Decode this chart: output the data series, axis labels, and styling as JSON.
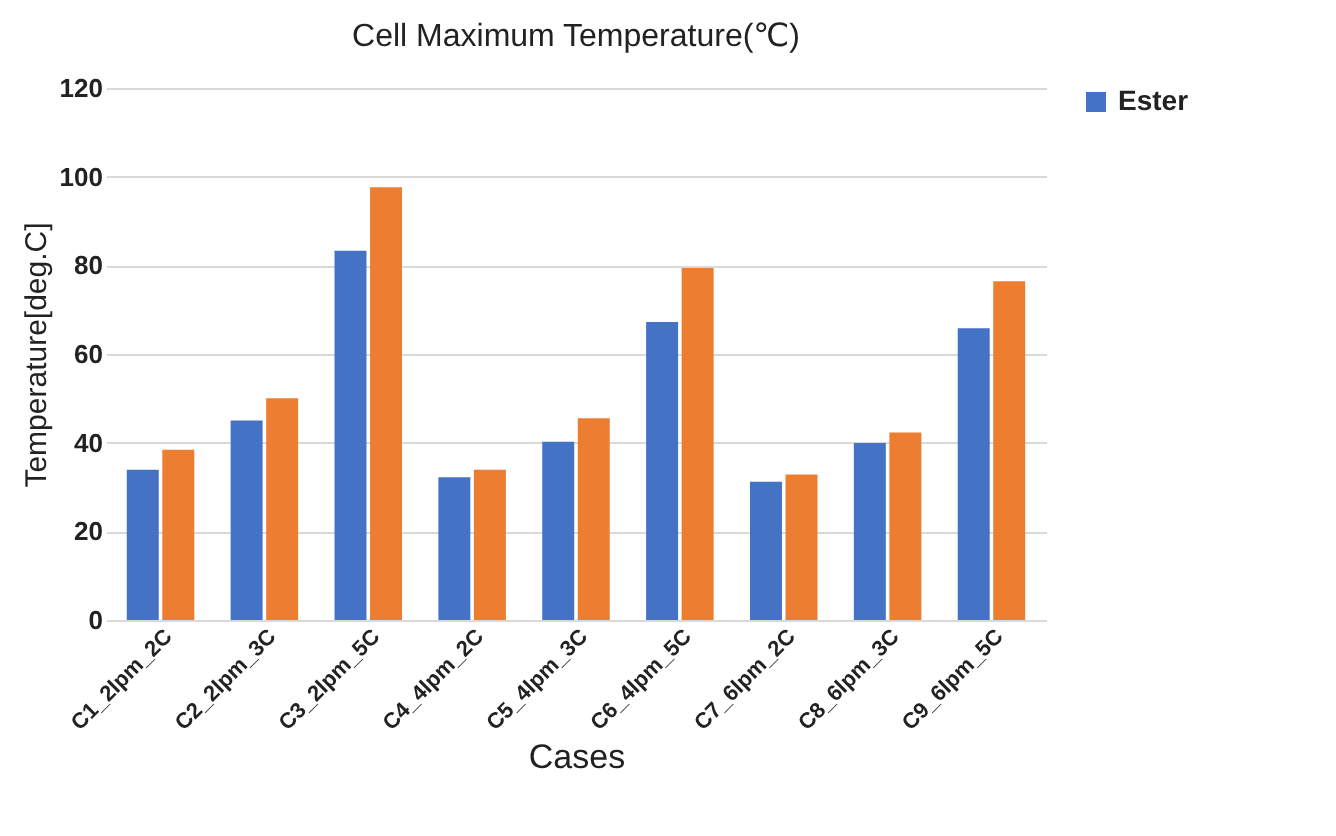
{
  "chart_data": {
    "type": "bar",
    "title": "Cell Maximum Temperature(℃)",
    "xlabel": "Cases",
    "ylabel": "Temperature[deg.C]",
    "categories": [
      "C1_2lpm_2C",
      "C2_2lpm_3C",
      "C3_2lpm_5C",
      "C4_4lpm_2C",
      "C5_4lpm_3C",
      "C6_4lpm_5C",
      "C7_6lpm_2C",
      "C8_6lpm_3C",
      "C9_6lpm_5C"
    ],
    "series": [
      {
        "name": "Ester",
        "color": "#4472c4",
        "values": [
          33.9,
          45.0,
          83.3,
          32.2,
          40.2,
          67.2,
          31.2,
          39.9,
          65.8
        ]
      },
      {
        "color": "#ed7d31",
        "values": [
          38.4,
          50.0,
          97.6,
          33.9,
          45.5,
          79.4,
          32.8,
          42.3,
          76.4
        ]
      }
    ],
    "ylim": [
      0,
      120
    ],
    "yticks": [
      0,
      20,
      40,
      60,
      80,
      100,
      120
    ],
    "grid": "y",
    "legend": "right"
  }
}
